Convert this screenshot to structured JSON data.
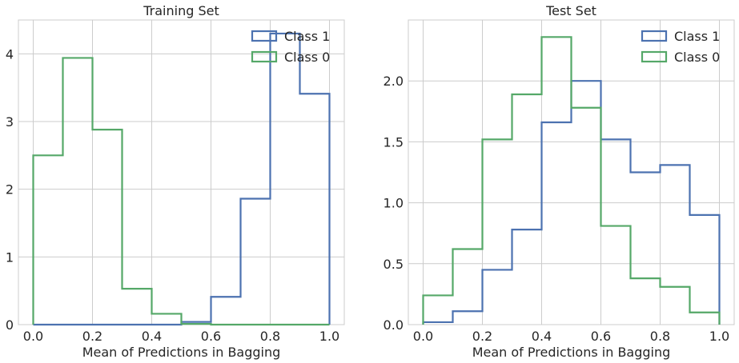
{
  "chart_data": [
    {
      "type": "histogram-step",
      "title": "Training Set",
      "xlabel": "Mean of Predictions in Bagging",
      "ylabel": "",
      "xlim": [
        -0.05,
        1.05
      ],
      "ylim": [
        0,
        4.5
      ],
      "bin_edges": [
        0.0,
        0.1,
        0.2,
        0.3,
        0.4,
        0.5,
        0.6,
        0.7,
        0.8,
        0.9,
        1.0
      ],
      "xticks": [
        0.0,
        0.2,
        0.4,
        0.6,
        0.8,
        1.0
      ],
      "xtick_labels": [
        "0.0",
        "0.2",
        "0.4",
        "0.6",
        "0.8",
        "1.0"
      ],
      "yticks": [
        0,
        1,
        2,
        3,
        4
      ],
      "ytick_labels": [
        "0",
        "1",
        "2",
        "3",
        "4"
      ],
      "grid": true,
      "legend_position": "top-right",
      "series": [
        {
          "name": "Class 1",
          "color": "#4c72b0",
          "values": [
            0.0,
            0.0,
            0.0,
            0.0,
            0.0,
            0.04,
            0.41,
            1.86,
            4.3,
            3.41
          ]
        },
        {
          "name": "Class 0",
          "color": "#55a868",
          "values": [
            2.5,
            3.94,
            2.88,
            0.53,
            0.16,
            0.01,
            0.0,
            0.0,
            0.0,
            0.0
          ]
        }
      ]
    },
    {
      "type": "histogram-step",
      "title": "Test Set",
      "xlabel": "Mean of Predictions in Bagging",
      "ylabel": "",
      "xlim": [
        -0.05,
        1.05
      ],
      "ylim": [
        0,
        2.5
      ],
      "bin_edges": [
        0.0,
        0.1,
        0.2,
        0.3,
        0.4,
        0.5,
        0.6,
        0.7,
        0.8,
        0.9,
        1.0
      ],
      "xticks": [
        0.0,
        0.2,
        0.4,
        0.6,
        0.8,
        1.0
      ],
      "xtick_labels": [
        "0.0",
        "0.2",
        "0.4",
        "0.6",
        "0.8",
        "1.0"
      ],
      "yticks": [
        0.0,
        0.5,
        1.0,
        1.5,
        2.0
      ],
      "ytick_labels": [
        "0.0",
        "0.5",
        "1.0",
        "1.5",
        "2.0"
      ],
      "grid": true,
      "legend_position": "top-right",
      "series": [
        {
          "name": "Class 1",
          "color": "#4c72b0",
          "values": [
            0.02,
            0.11,
            0.45,
            0.78,
            1.66,
            2.0,
            1.52,
            1.25,
            1.31,
            0.9
          ]
        },
        {
          "name": "Class 0",
          "color": "#55a868",
          "values": [
            0.24,
            0.62,
            1.52,
            1.89,
            2.36,
            1.78,
            0.81,
            0.38,
            0.31,
            0.1
          ]
        }
      ]
    }
  ]
}
